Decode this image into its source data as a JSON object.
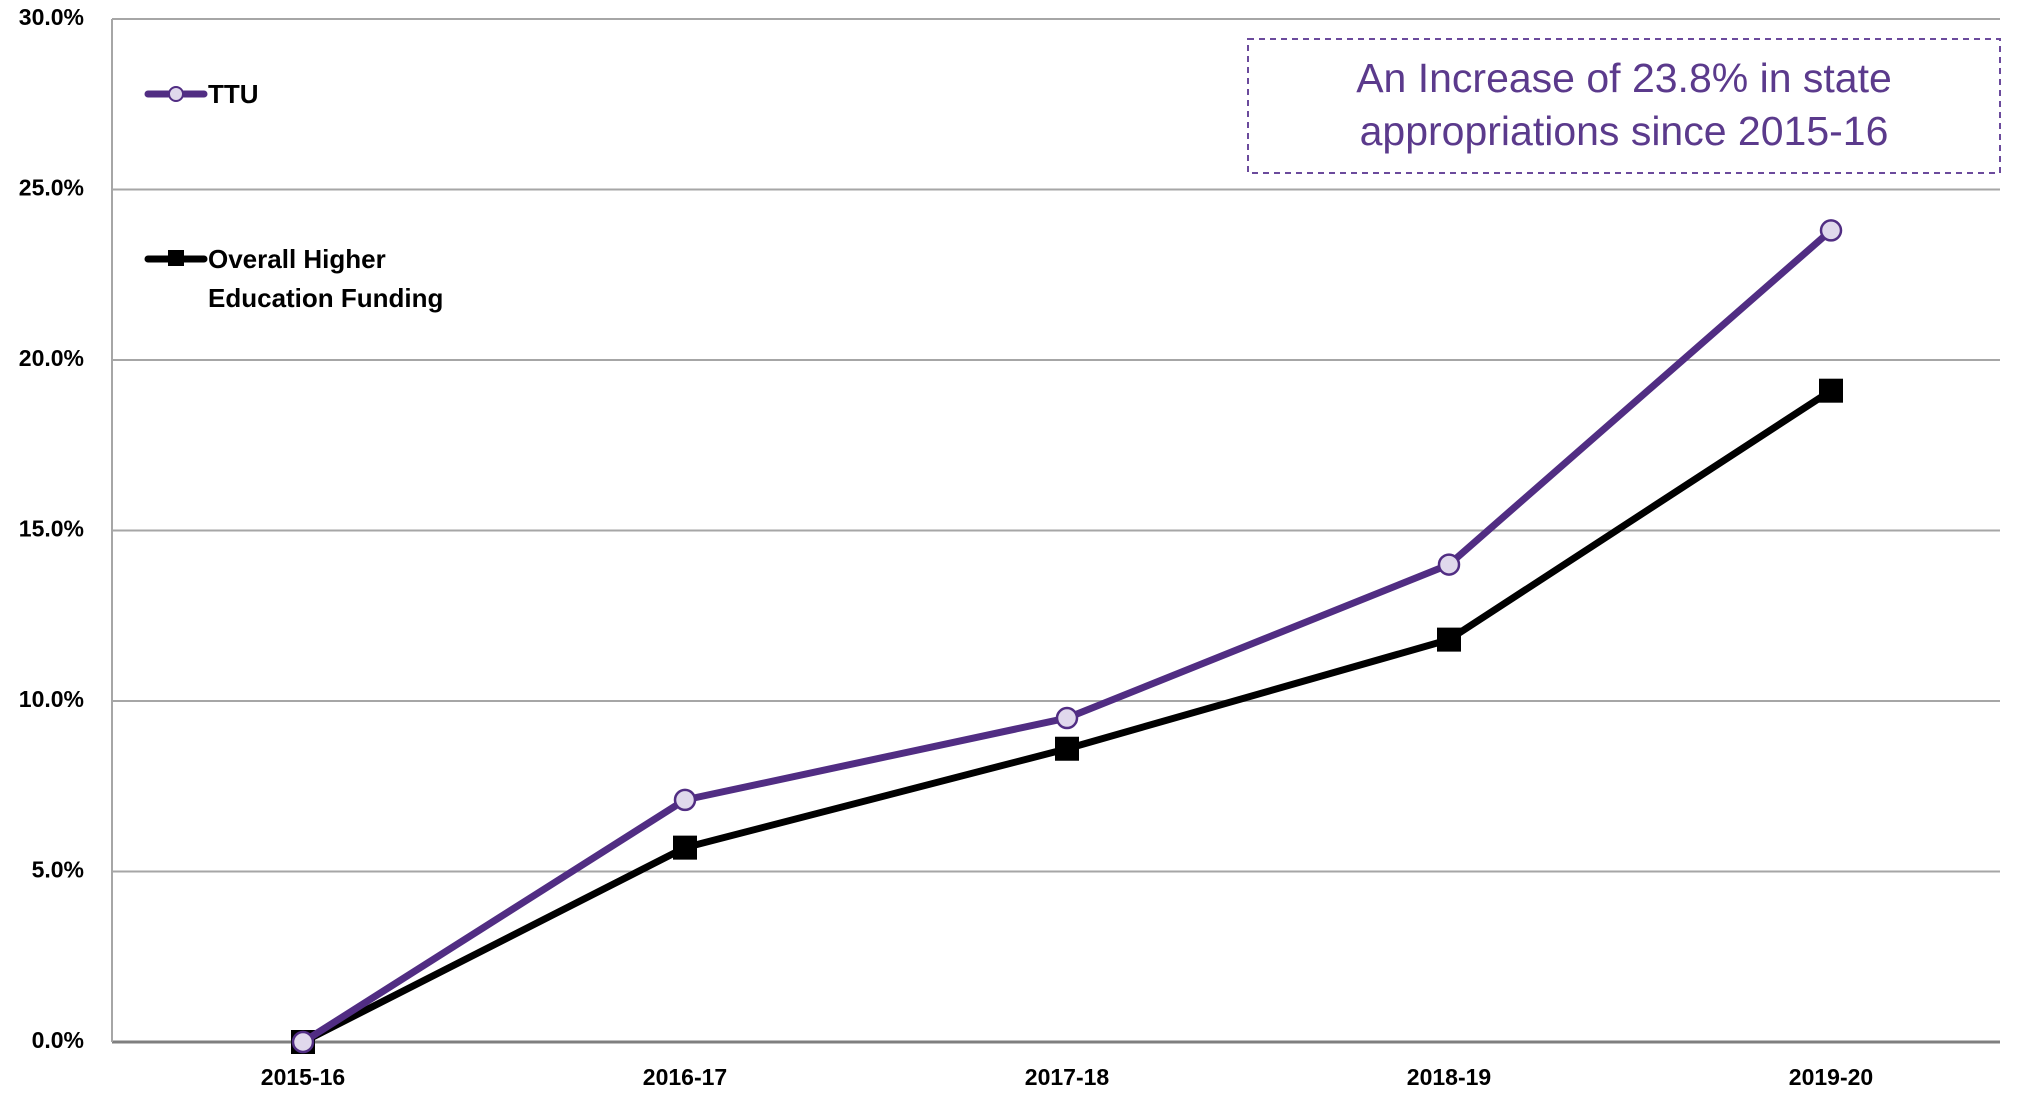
{
  "chart_data": {
    "type": "line",
    "categories": [
      "2015-16",
      "2016-17",
      "2017-18",
      "2018-19",
      "2019-20"
    ],
    "series": [
      {
        "name": "TTU",
        "color": "#512d83",
        "marker": "circle",
        "values": [
          0,
          7.1,
          9.5,
          14.0,
          23.8
        ]
      },
      {
        "name": "Overall Higher Education Funding",
        "color": "#000000",
        "marker": "square",
        "values": [
          0,
          5.7,
          8.6,
          11.8,
          19.1
        ]
      }
    ],
    "ylim": [
      0,
      30
    ],
    "yticks": [
      {
        "value": 0,
        "label": "0.0%"
      },
      {
        "value": 5,
        "label": "5.0%"
      },
      {
        "value": 10,
        "label": "10.0%"
      },
      {
        "value": 15,
        "label": "15.0%"
      },
      {
        "value": 20,
        "label": "20.0%"
      },
      {
        "value": 25,
        "label": "25.0%"
      },
      {
        "value": 30,
        "label": "30.0%"
      }
    ],
    "grid": true,
    "legend": "upper left",
    "annotation": [
      "An Increase of 23.8% in state",
      "appropriations since 2015-16"
    ]
  }
}
